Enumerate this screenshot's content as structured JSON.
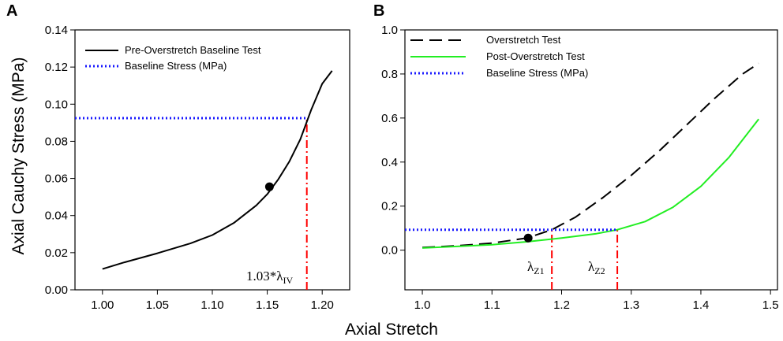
{
  "xlabel": "Axial Stretch",
  "chart_data": [
    {
      "panel": "A",
      "type": "line",
      "ylabel": "Axial Cauchy Stress (MPa)",
      "xlim": [
        0.975,
        1.225
      ],
      "ylim": [
        0.0,
        0.14
      ],
      "xticks": [
        "1.00",
        "1.05",
        "1.10",
        "1.15",
        "1.20"
      ],
      "xtick_values": [
        1.0,
        1.05,
        1.1,
        1.15,
        1.2
      ],
      "yticks": [
        "0.00",
        "0.02",
        "0.04",
        "0.06",
        "0.08",
        "0.10",
        "0.12",
        "0.14"
      ],
      "ytick_values": [
        0.0,
        0.02,
        0.04,
        0.06,
        0.08,
        0.1,
        0.12,
        0.14
      ],
      "series": [
        {
          "name": "Pre-Overstretch Baseline Test",
          "style": "solid",
          "color": "#000000",
          "x": [
            1.0,
            1.02,
            1.05,
            1.08,
            1.1,
            1.12,
            1.14,
            1.15,
            1.16,
            1.17,
            1.18,
            1.19,
            1.2,
            1.209
          ],
          "y": [
            0.0112,
            0.0148,
            0.0197,
            0.025,
            0.0295,
            0.0362,
            0.0455,
            0.0515,
            0.0595,
            0.069,
            0.081,
            0.097,
            0.111,
            0.118
          ]
        },
        {
          "name": "Baseline Stress (MPa)",
          "style": "dotted",
          "color": "#1a1aff",
          "x": [
            0.975,
            1.186
          ],
          "y": [
            0.0925,
            0.0925
          ]
        }
      ],
      "markers": [
        {
          "x": 1.152,
          "y": 0.0555
        }
      ],
      "vlines": [
        {
          "x": 1.186,
          "y_from": 0.0,
          "y_to": 0.0925,
          "color": "#ff0000",
          "style": "dash-dot"
        }
      ],
      "annotations": [
        {
          "text": "1.03*λ",
          "sub": "IV"
        }
      ]
    },
    {
      "panel": "B",
      "type": "line",
      "xlim": [
        0.975,
        1.51
      ],
      "ylim": [
        -0.18,
        1.0
      ],
      "xticks": [
        "1.0",
        "1.1",
        "1.2",
        "1.3",
        "1.4",
        "1.5"
      ],
      "xtick_values": [
        1.0,
        1.1,
        1.2,
        1.3,
        1.4,
        1.5
      ],
      "yticks": [
        "0.0",
        "0.2",
        "0.4",
        "0.6",
        "0.8",
        "1.0"
      ],
      "ytick_values": [
        0.0,
        0.2,
        0.4,
        0.6,
        0.8,
        1.0
      ],
      "series": [
        {
          "name": "Overstretch Test",
          "style": "dashed",
          "color": "#000000",
          "x": [
            1.0,
            1.05,
            1.1,
            1.15,
            1.186,
            1.22,
            1.26,
            1.3,
            1.34,
            1.38,
            1.42,
            1.46,
            1.483
          ],
          "y": [
            0.012,
            0.02,
            0.032,
            0.055,
            0.093,
            0.15,
            0.24,
            0.34,
            0.45,
            0.57,
            0.69,
            0.8,
            0.848
          ]
        },
        {
          "name": "Post-Overstretch Test",
          "style": "solid",
          "color": "#22ee22",
          "x": [
            1.0,
            1.05,
            1.1,
            1.15,
            1.2,
            1.25,
            1.28,
            1.32,
            1.36,
            1.4,
            1.44,
            1.483
          ],
          "y": [
            0.01,
            0.017,
            0.025,
            0.038,
            0.055,
            0.075,
            0.093,
            0.13,
            0.195,
            0.29,
            0.42,
            0.595
          ]
        },
        {
          "name": "Baseline Stress (MPa)",
          "style": "dotted",
          "color": "#1a1aff",
          "x": [
            0.975,
            1.28
          ],
          "y": [
            0.093,
            0.093
          ]
        }
      ],
      "markers": [
        {
          "x": 1.152,
          "y": 0.055
        }
      ],
      "vlines": [
        {
          "x": 1.186,
          "y_from": -0.18,
          "y_to": 0.093,
          "color": "#ff0000",
          "style": "dash-dot"
        },
        {
          "x": 1.28,
          "y_from": -0.18,
          "y_to": 0.093,
          "color": "#ff0000",
          "style": "dash-dot"
        }
      ],
      "annotations": [
        {
          "text": "λ",
          "sub": "Z1"
        },
        {
          "text": "λ",
          "sub": "Z2"
        }
      ]
    }
  ]
}
